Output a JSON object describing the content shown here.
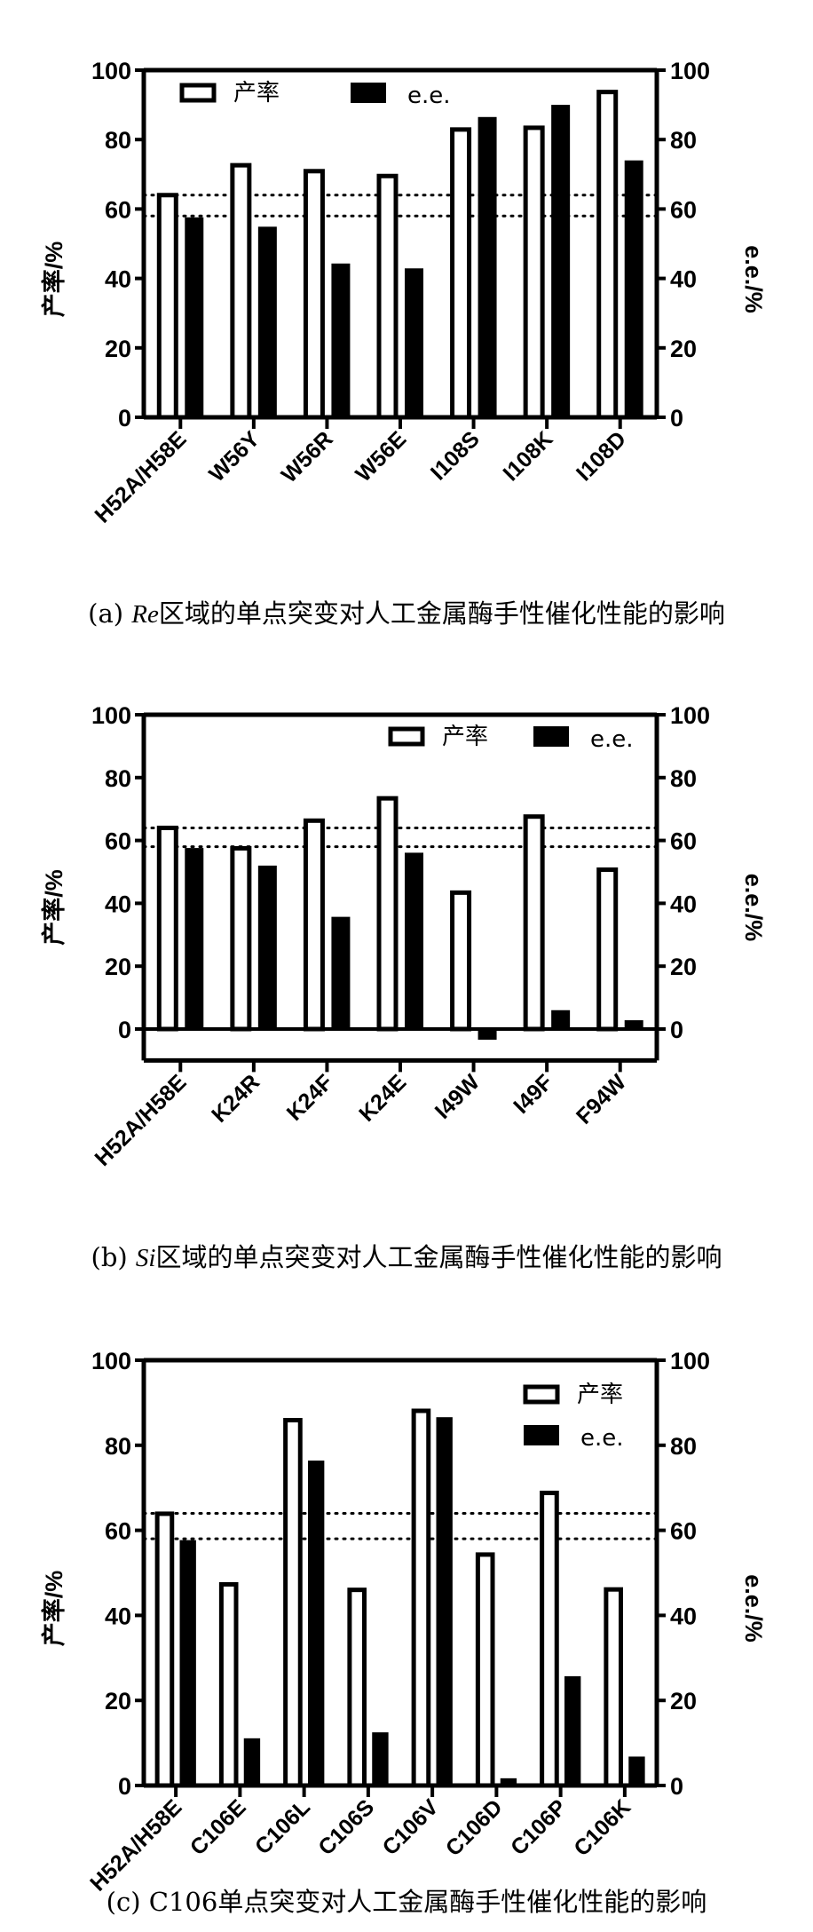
{
  "colors": {
    "yield_fill": "#ffffff",
    "ee_fill": "#000000",
    "stroke": "#000000"
  },
  "chart_data": [
    {
      "type": "bar",
      "caption_prefix": "(a) ",
      "caption_italic": "Re",
      "caption_rest": "区域的单点突变对人工金属酶手性催化性能的影响",
      "ylabel": "产率/%",
      "y2label": "e.e./%",
      "ylim": [
        0,
        100
      ],
      "y2lim": [
        0,
        100
      ],
      "yticks": [
        0,
        20,
        40,
        60,
        80,
        100
      ],
      "legend_position": "top-left",
      "legend_layout": "horizontal",
      "reference_lines": [
        64,
        58
      ],
      "categories": [
        "H52A/H58E",
        "W56Y",
        "W56R",
        "W56E",
        "I108S",
        "I108K",
        "I108D"
      ],
      "series": [
        {
          "name": "产率",
          "values": [
            64,
            72.6,
            70.9,
            69.5,
            82.9,
            83.4,
            93.7
          ]
        },
        {
          "name": "e.e.",
          "values": [
            57.6,
            54.9,
            44.3,
            42.9,
            86.5,
            90,
            74
          ]
        }
      ]
    },
    {
      "type": "bar",
      "caption_prefix": "(b) ",
      "caption_italic": "Si",
      "caption_rest": "区域的单点突变对人工金属酶手性催化性能的影响",
      "ylabel": "产率/%",
      "y2label": "e.e./%",
      "ylim": [
        -10,
        100
      ],
      "y2lim": [
        -10,
        100
      ],
      "yticks": [
        0,
        20,
        40,
        60,
        80,
        100
      ],
      "legend_position": "top-right",
      "legend_layout": "horizontal",
      "reference_lines": [
        64,
        58
      ],
      "categories": [
        "H52A/H58E",
        "K24R",
        "K24F",
        "K24E",
        "I49W",
        "I49F",
        "F94W"
      ],
      "series": [
        {
          "name": "产率",
          "values": [
            64,
            57.5,
            66.3,
            73.4,
            43.4,
            67.6,
            50.7
          ]
        },
        {
          "name": "e.e.",
          "values": [
            57.6,
            52,
            35.7,
            56.1,
            -3.4,
            6,
            2.8
          ]
        }
      ]
    },
    {
      "type": "bar",
      "caption_prefix": "(c) ",
      "caption_italic": "",
      "caption_rest": "C106单点突变对人工金属酶手性催化性能的影响",
      "ylabel": "产率/%",
      "y2label": "e.e./%",
      "ylim": [
        0,
        100
      ],
      "y2lim": [
        0,
        100
      ],
      "yticks": [
        0,
        20,
        40,
        60,
        80,
        100
      ],
      "legend_position": "top-right",
      "legend_layout": "vertical",
      "reference_lines": [
        64,
        58
      ],
      "categories": [
        "H52A/H58E",
        "C106E",
        "C106L",
        "C106S",
        "C106V",
        "C106D",
        "C106P",
        "C106K"
      ],
      "series": [
        {
          "name": "产率",
          "values": [
            63.9,
            47.3,
            85.9,
            46,
            88.1,
            54.3,
            68.8,
            46.1
          ]
        },
        {
          "name": "e.e.",
          "values": [
            57.7,
            11.1,
            76.4,
            12.5,
            86.6,
            1.7,
            25.7,
            6.8
          ]
        }
      ]
    }
  ]
}
